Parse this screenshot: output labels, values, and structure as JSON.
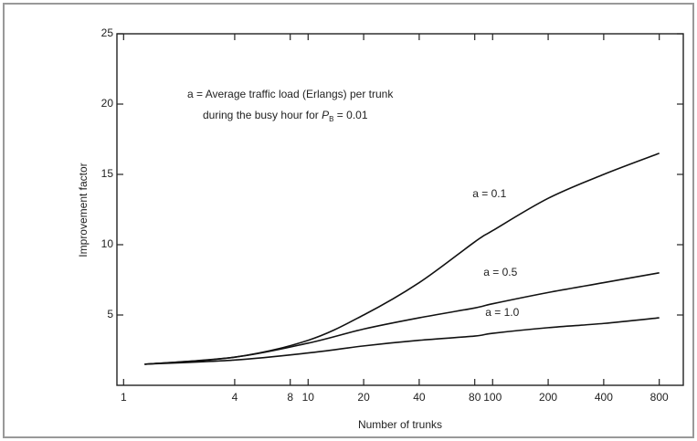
{
  "chart_data": {
    "type": "line",
    "annotation": {
      "line1": "a = Average traffic load (Erlangs) per trunk",
      "line2": "during the busy hour for",
      "symbol": "P",
      "subscript": "B",
      "value": "= 0.01"
    },
    "xlabel": "Number of trunks",
    "ylabel": "Improvement factor",
    "log_x": true,
    "x": [
      1.3,
      4,
      10,
      20,
      40,
      80,
      100,
      200,
      400,
      800
    ],
    "series": [
      {
        "name": "a = 0.1",
        "color": "#111111",
        "values": [
          1.5,
          2.0,
          3.2,
          5.0,
          7.3,
          10.2,
          11.0,
          13.3,
          15.0,
          16.5
        ]
      },
      {
        "name": "a = 0.5",
        "color": "#111111",
        "values": [
          1.5,
          2.0,
          3.0,
          4.0,
          4.8,
          5.5,
          5.8,
          6.6,
          7.3,
          8.0
        ]
      },
      {
        "name": "a = 1.0",
        "color": "#111111",
        "values": [
          1.5,
          1.8,
          2.3,
          2.8,
          3.2,
          3.5,
          3.7,
          4.1,
          4.4,
          4.8
        ]
      }
    ],
    "xlim": [
      0.92,
      1080
    ],
    "xticks": [
      1,
      4,
      8,
      10,
      20,
      40,
      80,
      100,
      200,
      400,
      800
    ],
    "ylim": [
      0,
      25
    ],
    "yticks": [
      5,
      10,
      15,
      20,
      25
    ],
    "grid": false
  }
}
